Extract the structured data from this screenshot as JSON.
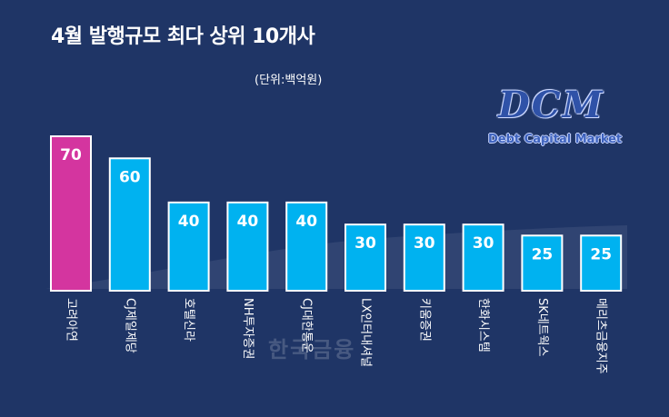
{
  "chart_data": {
    "type": "bar",
    "title": "4월 발행규모 최다 상위 10개사",
    "unit_label": "(단위:백억원)",
    "categories": [
      "고려아연",
      "CJ제일제당",
      "호텔신라",
      "NH투자증권",
      "CJ대한통운",
      "LX인터내셔널",
      "키움증권",
      "한화시스템",
      "SK네트웍스",
      "메리츠금융지주"
    ],
    "values": [
      70,
      60,
      40,
      40,
      40,
      30,
      30,
      30,
      25,
      25
    ],
    "highlight_index": 0,
    "ylim": [
      0,
      70
    ],
    "grid": false,
    "colors": {
      "highlight": "#d4359f",
      "bar": "#00b2f0",
      "background": "#1f3566"
    }
  },
  "logo": {
    "main": "DCM",
    "sub": "Debt Capital Market"
  },
  "watermark": "한국금융"
}
